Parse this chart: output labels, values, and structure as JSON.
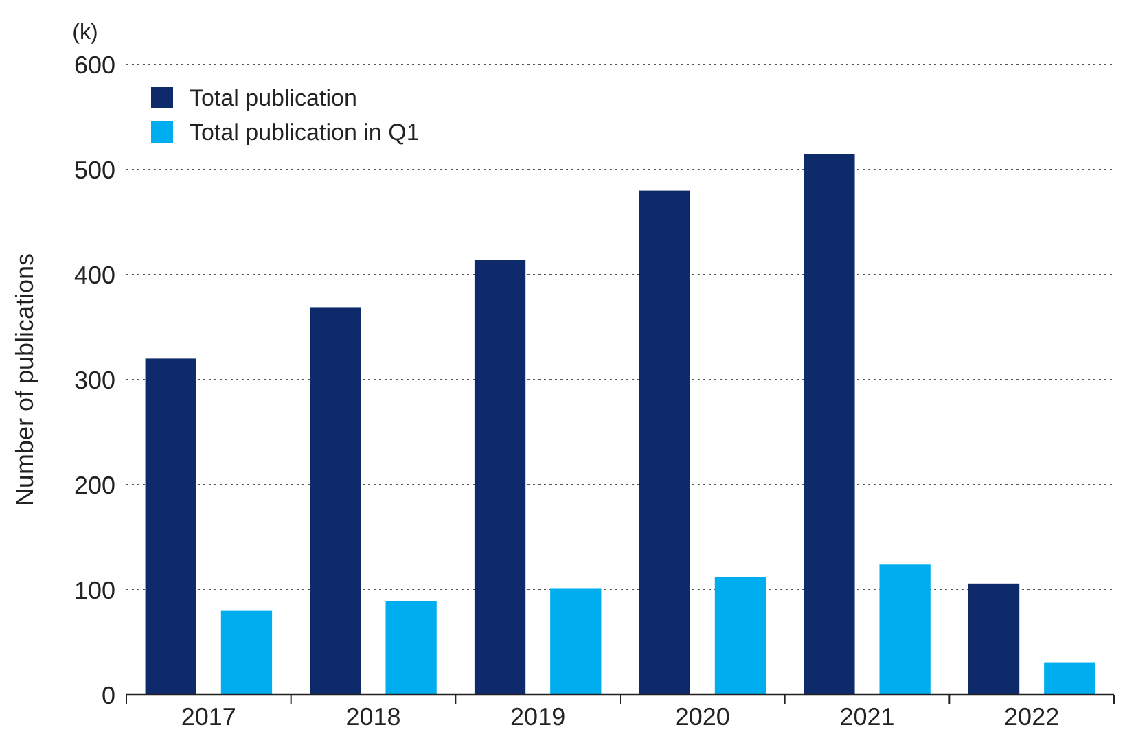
{
  "chart_data": {
    "type": "bar",
    "ylabel": "Number of publications",
    "annotations": [
      "(k)"
    ],
    "categories": [
      "2017",
      "2018",
      "2019",
      "2020",
      "2021",
      "2022"
    ],
    "series": [
      {
        "name": "Total publication",
        "color": "#0f2a6b",
        "values": [
          320,
          369,
          414,
          480,
          515,
          106
        ]
      },
      {
        "name": "Total publication in Q1",
        "color": "#00aeef",
        "values": [
          80,
          89,
          101,
          112,
          124,
          31
        ]
      }
    ],
    "ylim": [
      0,
      600
    ],
    "yticks": [
      0,
      100,
      200,
      300,
      400,
      500,
      600
    ],
    "grid": "y",
    "legend": "top left"
  }
}
